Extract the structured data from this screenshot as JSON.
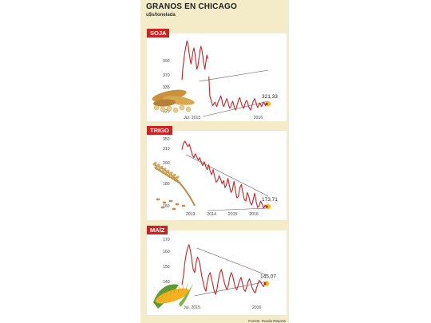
{
  "header": {
    "title": "GRANOS EN CHICAGO",
    "unit": "u$s/tonelada"
  },
  "footer": {
    "source": "Fuente: Rueda Reports"
  },
  "colors": {
    "line": "#cc2222",
    "background": "#f4ebc8",
    "tag": "#cc2222"
  },
  "chart_data": [
    {
      "type": "line",
      "title": "SOJA",
      "y_ticks": [
        "390",
        "370",
        "335",
        "320",
        "310"
      ],
      "x_ticks": [
        "Jul. 2015",
        "2016"
      ],
      "last_label": "321,33",
      "illustration": "soybean-pods",
      "y_values": [
        348,
        362,
        372,
        380,
        386,
        392,
        389,
        380,
        372,
        366,
        372,
        380,
        384,
        378,
        368,
        360,
        364,
        372,
        380,
        386,
        382,
        374,
        366,
        360,
        368,
        376,
        372,
        352,
        330,
        326,
        322,
        319,
        321,
        323,
        320,
        318,
        322,
        325,
        327,
        330,
        326,
        320,
        318,
        321,
        324,
        327,
        324,
        319,
        316,
        318,
        322,
        324,
        320,
        316,
        314,
        318,
        322,
        326,
        328,
        324,
        320,
        318,
        316,
        320,
        323,
        325,
        322,
        318,
        316,
        314,
        318,
        322,
        325,
        327,
        324,
        320,
        317,
        319,
        322,
        320,
        318,
        321,
        323,
        321,
        319,
        321
      ]
    },
    {
      "type": "line",
      "title": "TRIGO",
      "y_ticks": [
        "350",
        "310",
        "290",
        "180",
        "160"
      ],
      "x_ticks": [
        "2013",
        "2014",
        "2015",
        "2016"
      ],
      "last_label": "173,71",
      "illustration": "wheat-sheaf",
      "y_values": [
        318,
        335,
        340,
        332,
        326,
        332,
        318,
        305,
        298,
        308,
        300,
        292,
        298,
        286,
        278,
        288,
        276,
        268,
        280,
        264,
        255,
        268,
        250,
        236,
        240,
        252,
        244,
        232,
        240,
        222,
        230,
        246,
        226,
        210,
        216,
        238,
        216,
        196,
        200,
        222,
        230,
        210,
        192,
        188,
        210,
        200,
        184,
        178,
        192,
        208,
        186,
        172,
        176,
        188,
        180,
        170,
        178,
        174
      ]
    },
    {
      "type": "line",
      "title": "MAÍZ",
      "y_ticks": [
        "170",
        "160",
        "150",
        "140"
      ],
      "x_ticks": [
        "Jul. 2015",
        "2016"
      ],
      "last_label": "145,07",
      "illustration": "corn-cob",
      "y_values": [
        144,
        150,
        158,
        164,
        168,
        170,
        166,
        160,
        154,
        152,
        158,
        162,
        160,
        156,
        150,
        146,
        142,
        140,
        146,
        150,
        152,
        148,
        144,
        140,
        138,
        142,
        148,
        152,
        154,
        150,
        146,
        143,
        141,
        144,
        149,
        152,
        150,
        146,
        142,
        141,
        144,
        147,
        149,
        145,
        141,
        140,
        143,
        146,
        148,
        145,
        142,
        140,
        139,
        142,
        145,
        147,
        146,
        144,
        143,
        145
      ]
    }
  ]
}
